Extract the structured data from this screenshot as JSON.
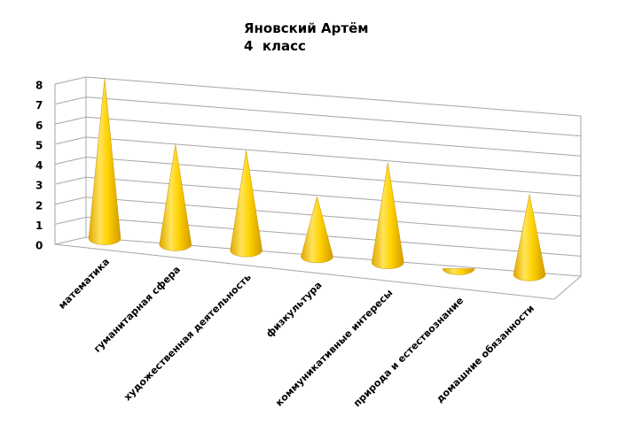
{
  "chart_data": {
    "type": "cone3d",
    "title": [
      "Яновский Артём",
      "4  класс"
    ],
    "categories": [
      "математика",
      "гуманитарная сфера",
      "художественная деятельность",
      "физкультура",
      "коммуникативные интересы",
      "природа и естествознание",
      "домашние обязанности"
    ],
    "values": [
      8,
      5,
      5,
      3,
      5,
      0,
      4
    ],
    "color": "#ffd200",
    "ylim": [
      0,
      8
    ],
    "yticks": [
      0,
      1,
      2,
      3,
      4,
      5,
      6,
      7,
      8
    ],
    "grid": true
  }
}
